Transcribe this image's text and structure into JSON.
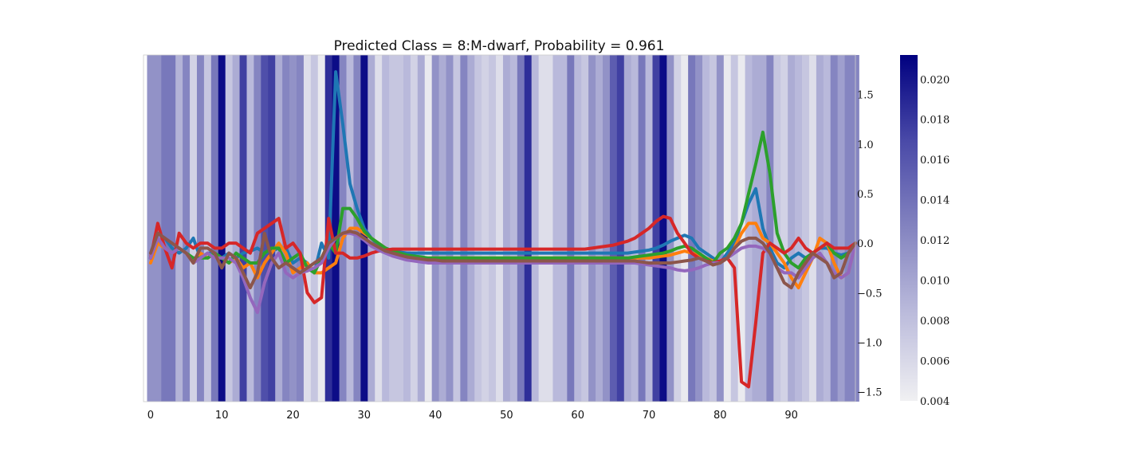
{
  "chart_data": {
    "type": "line",
    "title": "Predicted Class = 8:M-dwarf, Probability = 0.961",
    "xlabel": "",
    "ylabel": "",
    "x_range": [
      -1,
      99
    ],
    "ylim": [
      -1.6,
      1.9
    ],
    "x_ticks": [
      0,
      10,
      20,
      30,
      40,
      50,
      60,
      70,
      80,
      90
    ],
    "y_ticks": [
      1.5,
      1.0,
      0.5,
      0.0,
      -0.5,
      -1.0,
      -1.5
    ],
    "y_tick_labels": [
      "1.5",
      "1.0",
      "0.5",
      "0.0",
      "−0.5",
      "−1.0",
      "−1.5"
    ],
    "colorbar": {
      "range": [
        0.004,
        0.0212
      ],
      "ticks": [
        0.02,
        0.018,
        0.016,
        0.014,
        0.012,
        0.01,
        0.008,
        0.006,
        0.004
      ],
      "tick_labels": [
        "0.020",
        "0.018",
        "0.016",
        "0.014",
        "0.012",
        "0.010",
        "0.008",
        "0.006",
        "0.004"
      ],
      "low_color": "#f0f0f2",
      "high_color": "#000080"
    },
    "background_importance": [
      0.0115,
      0.0115,
      0.0135,
      0.0135,
      0.009,
      0.0125,
      0.0065,
      0.0125,
      0.0075,
      0.0135,
      0.0205,
      0.0075,
      0.0095,
      0.0175,
      0.0085,
      0.0125,
      0.0165,
      0.0175,
      0.0095,
      0.0125,
      0.0115,
      0.0125,
      0.0055,
      0.0075,
      0.0045,
      0.0185,
      0.0205,
      0.0125,
      0.0085,
      0.0125,
      0.0205,
      0.0095,
      0.0055,
      0.0085,
      0.0075,
      0.0075,
      0.0085,
      0.0065,
      0.0095,
      0.0045,
      0.0115,
      0.0095,
      0.0115,
      0.0075,
      0.0125,
      0.0095,
      0.0075,
      0.0065,
      0.0075,
      0.0055,
      0.0095,
      0.0085,
      0.0135,
      0.0185,
      0.0085,
      0.0055,
      0.0055,
      0.0085,
      0.0085,
      0.0135,
      0.0085,
      0.0075,
      0.0115,
      0.0095,
      0.0115,
      0.0155,
      0.0175,
      0.0095,
      0.0085,
      0.0135,
      0.0085,
      0.0175,
      0.0205,
      0.0115,
      0.0065,
      0.0045,
      0.0135,
      0.0115,
      0.0085,
      0.0075,
      0.0115,
      0.0045,
      0.0075,
      0.0045,
      0.0085,
      0.0095,
      0.0095,
      0.0125,
      0.0075,
      0.0065,
      0.0095,
      0.0085,
      0.0075,
      0.0055,
      0.0095,
      0.0085,
      0.0125,
      0.0105,
      0.0125,
      0.0125
    ],
    "series": [
      {
        "name": "tab:blue",
        "color": "#1f77b4",
        "values": [
          -0.15,
          0.1,
          0.05,
          -0.05,
          -0.1,
          -0.05,
          0.05,
          -0.15,
          -0.1,
          -0.1,
          -0.15,
          -0.1,
          -0.15,
          -0.1,
          -0.08,
          -0.05,
          -0.1,
          -0.08,
          -0.05,
          -0.05,
          -0.2,
          -0.15,
          -0.2,
          -0.3,
          0.0,
          -0.15,
          1.73,
          1.2,
          0.6,
          0.35,
          0.15,
          0.05,
          -0.02,
          -0.05,
          -0.08,
          -0.09,
          -0.1,
          -0.1,
          -0.1,
          -0.1,
          -0.1,
          -0.1,
          -0.1,
          -0.1,
          -0.1,
          -0.1,
          -0.1,
          -0.1,
          -0.1,
          -0.1,
          -0.1,
          -0.1,
          -0.1,
          -0.1,
          -0.1,
          -0.1,
          -0.1,
          -0.1,
          -0.1,
          -0.1,
          -0.1,
          -0.1,
          -0.1,
          -0.1,
          -0.1,
          -0.1,
          -0.1,
          -0.1,
          -0.09,
          -0.08,
          -0.07,
          -0.05,
          -0.02,
          0.02,
          0.05,
          0.08,
          0.05,
          -0.05,
          -0.1,
          -0.15,
          -0.2,
          -0.1,
          0.0,
          0.2,
          0.4,
          0.55,
          0.15,
          -0.05,
          -0.2,
          -0.25,
          -0.15,
          -0.1,
          -0.15,
          -0.1,
          -0.05,
          -0.05,
          -0.1,
          -0.12,
          -0.1,
          0.0
        ]
      },
      {
        "name": "tab:orange",
        "color": "#ff7f0e",
        "values": [
          -0.2,
          0.0,
          -0.05,
          -0.1,
          -0.05,
          -0.1,
          -0.2,
          -0.1,
          -0.15,
          -0.1,
          -0.15,
          -0.2,
          -0.15,
          -0.25,
          -0.2,
          -0.35,
          -0.2,
          -0.1,
          0.0,
          -0.1,
          -0.3,
          -0.25,
          -0.2,
          -0.3,
          -0.3,
          -0.25,
          -0.2,
          0.05,
          0.15,
          0.15,
          0.1,
          0.05,
          0.0,
          -0.05,
          -0.1,
          -0.12,
          -0.13,
          -0.14,
          -0.15,
          -0.15,
          -0.15,
          -0.15,
          -0.15,
          -0.15,
          -0.15,
          -0.15,
          -0.15,
          -0.15,
          -0.15,
          -0.15,
          -0.15,
          -0.15,
          -0.15,
          -0.15,
          -0.15,
          -0.15,
          -0.15,
          -0.15,
          -0.15,
          -0.15,
          -0.15,
          -0.15,
          -0.15,
          -0.15,
          -0.15,
          -0.15,
          -0.15,
          -0.15,
          -0.15,
          -0.15,
          -0.15,
          -0.14,
          -0.13,
          -0.12,
          -0.1,
          -0.08,
          -0.1,
          -0.12,
          -0.15,
          -0.18,
          -0.2,
          -0.15,
          -0.05,
          0.1,
          0.2,
          0.2,
          0.05,
          0.0,
          -0.1,
          -0.2,
          -0.35,
          -0.45,
          -0.3,
          -0.15,
          0.05,
          0.0,
          -0.2,
          -0.35,
          -0.3,
          0.0
        ]
      },
      {
        "name": "tab:green",
        "color": "#2ca02c",
        "values": [
          -0.15,
          0.05,
          -0.05,
          -0.1,
          -0.05,
          -0.1,
          -0.15,
          -0.15,
          -0.15,
          -0.1,
          -0.15,
          -0.2,
          -0.1,
          -0.15,
          -0.2,
          -0.2,
          -0.1,
          -0.05,
          -0.05,
          -0.2,
          -0.15,
          -0.1,
          -0.25,
          -0.3,
          -0.15,
          0.0,
          -0.1,
          0.35,
          0.35,
          0.25,
          0.12,
          0.05,
          0.0,
          -0.05,
          -0.08,
          -0.1,
          -0.12,
          -0.13,
          -0.14,
          -0.15,
          -0.15,
          -0.15,
          -0.15,
          -0.15,
          -0.15,
          -0.15,
          -0.15,
          -0.15,
          -0.15,
          -0.15,
          -0.15,
          -0.15,
          -0.15,
          -0.15,
          -0.15,
          -0.15,
          -0.15,
          -0.15,
          -0.15,
          -0.15,
          -0.15,
          -0.15,
          -0.15,
          -0.15,
          -0.15,
          -0.15,
          -0.15,
          -0.15,
          -0.14,
          -0.13,
          -0.12,
          -0.11,
          -0.1,
          -0.08,
          -0.05,
          -0.03,
          -0.05,
          -0.1,
          -0.15,
          -0.2,
          -0.1,
          -0.05,
          0.05,
          0.2,
          0.5,
          0.8,
          1.12,
          0.7,
          0.1,
          -0.1,
          -0.2,
          -0.25,
          -0.15,
          -0.1,
          -0.05,
          0.0,
          -0.1,
          -0.15,
          -0.1,
          0.0
        ]
      },
      {
        "name": "tab:red",
        "color": "#d62728",
        "values": [
          -0.15,
          0.2,
          -0.05,
          -0.25,
          0.1,
          0.0,
          -0.05,
          0.0,
          0.0,
          -0.05,
          -0.05,
          0.0,
          0.0,
          -0.05,
          -0.1,
          0.1,
          0.15,
          0.2,
          0.25,
          -0.05,
          0.0,
          -0.1,
          -0.5,
          -0.6,
          -0.55,
          0.25,
          -0.1,
          -0.1,
          -0.15,
          -0.15,
          -0.13,
          -0.1,
          -0.08,
          -0.07,
          -0.06,
          -0.06,
          -0.06,
          -0.06,
          -0.06,
          -0.06,
          -0.06,
          -0.06,
          -0.06,
          -0.06,
          -0.06,
          -0.06,
          -0.06,
          -0.06,
          -0.06,
          -0.06,
          -0.06,
          -0.06,
          -0.06,
          -0.06,
          -0.06,
          -0.06,
          -0.06,
          -0.06,
          -0.06,
          -0.06,
          -0.06,
          -0.06,
          -0.05,
          -0.04,
          -0.03,
          -0.02,
          0.0,
          0.02,
          0.05,
          0.1,
          0.15,
          0.22,
          0.27,
          0.25,
          0.1,
          0.0,
          -0.1,
          -0.15,
          -0.18,
          -0.2,
          -0.18,
          -0.15,
          -0.25,
          -1.4,
          -1.45,
          -0.8,
          -0.1,
          0.0,
          -0.05,
          -0.1,
          -0.05,
          0.05,
          -0.05,
          -0.1,
          -0.05,
          0.0,
          -0.05,
          -0.05,
          -0.05,
          0.0
        ]
      },
      {
        "name": "tab:purple",
        "color": "#9467bd",
        "values": [
          -0.15,
          0.05,
          -0.05,
          -0.1,
          -0.05,
          -0.1,
          -0.2,
          -0.15,
          -0.1,
          -0.15,
          -0.15,
          -0.15,
          -0.2,
          -0.35,
          -0.55,
          -0.7,
          -0.4,
          -0.2,
          -0.1,
          -0.3,
          -0.35,
          -0.3,
          -0.28,
          -0.25,
          -0.2,
          -0.05,
          0.05,
          0.1,
          0.1,
          0.08,
          0.03,
          -0.03,
          -0.07,
          -0.1,
          -0.13,
          -0.15,
          -0.17,
          -0.18,
          -0.19,
          -0.2,
          -0.2,
          -0.2,
          -0.2,
          -0.2,
          -0.2,
          -0.2,
          -0.2,
          -0.2,
          -0.2,
          -0.2,
          -0.2,
          -0.2,
          -0.2,
          -0.2,
          -0.2,
          -0.2,
          -0.2,
          -0.2,
          -0.2,
          -0.2,
          -0.2,
          -0.2,
          -0.2,
          -0.2,
          -0.2,
          -0.2,
          -0.2,
          -0.2,
          -0.2,
          -0.21,
          -0.22,
          -0.23,
          -0.24,
          -0.25,
          -0.27,
          -0.28,
          -0.27,
          -0.25,
          -0.22,
          -0.2,
          -0.2,
          -0.15,
          -0.1,
          -0.05,
          -0.03,
          -0.03,
          -0.05,
          -0.1,
          -0.25,
          -0.3,
          -0.3,
          -0.35,
          -0.25,
          -0.15,
          -0.1,
          -0.2,
          -0.3,
          -0.35,
          -0.3,
          0.0
        ]
      },
      {
        "name": "tab:brown",
        "color": "#8c564b",
        "values": [
          -0.1,
          0.1,
          0.05,
          0.0,
          -0.05,
          -0.1,
          -0.2,
          -0.05,
          -0.05,
          -0.1,
          -0.25,
          -0.1,
          -0.15,
          -0.3,
          -0.45,
          -0.3,
          0.1,
          -0.15,
          -0.25,
          -0.2,
          -0.25,
          -0.3,
          -0.25,
          -0.2,
          -0.15,
          0.0,
          0.05,
          0.1,
          0.12,
          0.1,
          0.05,
          0.0,
          -0.04,
          -0.08,
          -0.1,
          -0.12,
          -0.14,
          -0.15,
          -0.16,
          -0.17,
          -0.17,
          -0.18,
          -0.18,
          -0.18,
          -0.18,
          -0.18,
          -0.18,
          -0.18,
          -0.18,
          -0.18,
          -0.18,
          -0.18,
          -0.18,
          -0.18,
          -0.18,
          -0.18,
          -0.18,
          -0.18,
          -0.18,
          -0.18,
          -0.18,
          -0.18,
          -0.18,
          -0.18,
          -0.18,
          -0.18,
          -0.18,
          -0.18,
          -0.18,
          -0.19,
          -0.2,
          -0.2,
          -0.2,
          -0.2,
          -0.19,
          -0.18,
          -0.17,
          -0.15,
          -0.18,
          -0.22,
          -0.2,
          -0.15,
          -0.05,
          0.02,
          0.05,
          0.05,
          0.0,
          -0.1,
          -0.25,
          -0.4,
          -0.45,
          -0.3,
          -0.2,
          -0.1,
          -0.15,
          -0.2,
          -0.35,
          -0.3,
          -0.1,
          0.0
        ]
      }
    ]
  }
}
